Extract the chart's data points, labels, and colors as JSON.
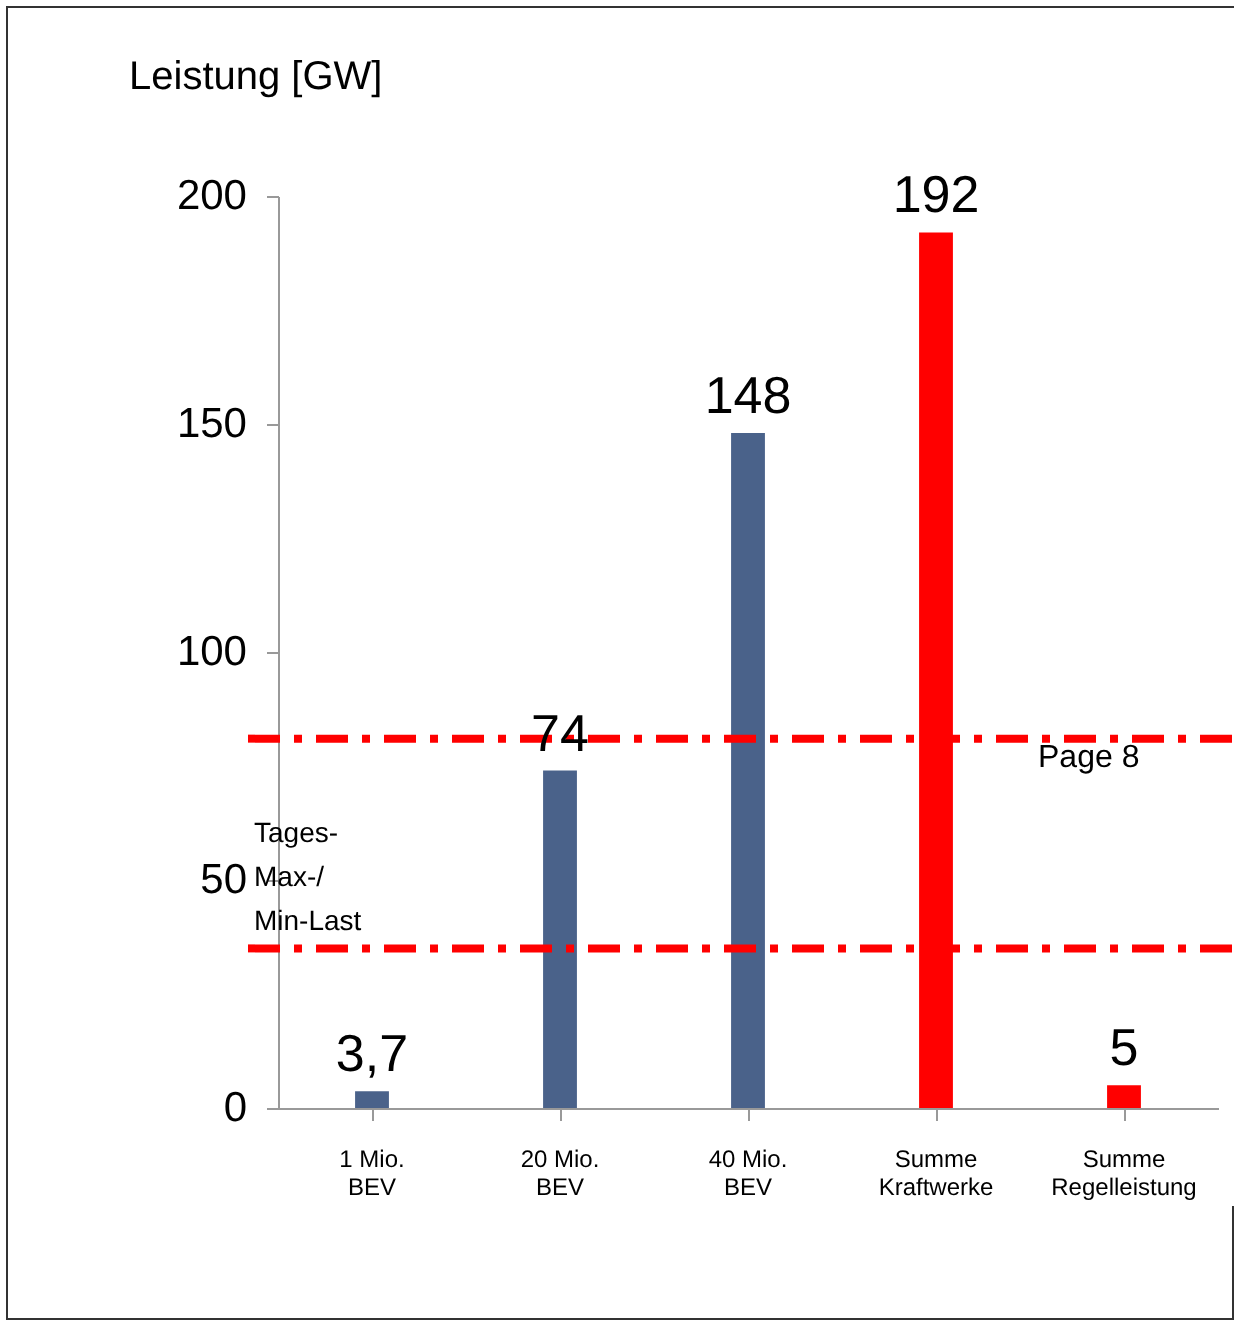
{
  "chart_data": {
    "type": "bar",
    "ylabel": "Leistung [GW]",
    "categories": [
      "1 Mio.\nBEV",
      "20 Mio.\nBEV",
      "40 Mio.\nBEV",
      "Summe\nKraftwerke",
      "Summe\nRegelleistung"
    ],
    "values": [
      3.7,
      74,
      148,
      192,
      5
    ],
    "colors": [
      "#4a628a",
      "#4a628a",
      "#4a628a",
      "#ff0000",
      "#ff0000"
    ],
    "value_labels": [
      "3,7",
      "74",
      "148",
      "192",
      "5"
    ],
    "ylim": [
      0,
      200
    ],
    "yticks": [
      0,
      50,
      100,
      150,
      200
    ],
    "grid": false,
    "ref_lines": [
      {
        "axis": "y",
        "value": 81,
        "color": "#ff0000",
        "line_style": "dashed"
      },
      {
        "axis": "y",
        "value": 35,
        "color": "#ff0000",
        "line_style": "dashed"
      }
    ],
    "annotations": [
      "Tages-\nMax-/\nMin-Last",
      "Page 8"
    ]
  }
}
